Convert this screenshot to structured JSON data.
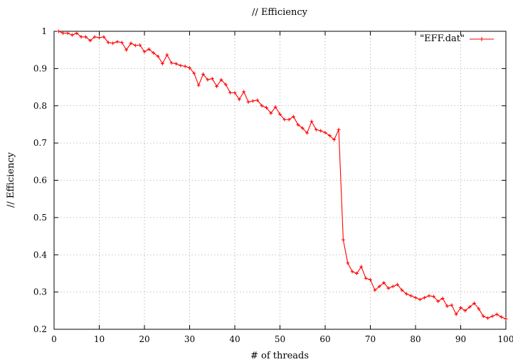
{
  "chart_data": {
    "type": "line",
    "title": "// Efficiency",
    "xlabel": "# of threads",
    "ylabel": "// Efficiency",
    "xlim": [
      0,
      100
    ],
    "ylim": [
      0.2,
      1
    ],
    "x_ticks": [
      0,
      10,
      20,
      30,
      40,
      50,
      60,
      70,
      80,
      90,
      100
    ],
    "y_ticks": [
      0.2,
      0.3,
      0.4,
      0.5,
      0.6,
      0.7,
      0.8,
      0.9,
      1
    ],
    "y_tick_labels": [
      "0.2",
      "0.3",
      "0.4",
      "0.5",
      "0.6",
      "0.7",
      "0.8",
      "0.9",
      "1"
    ],
    "grid": true,
    "legend_position": "top-right",
    "color": "#ff0000",
    "series": [
      {
        "name": "\"EFF.dat\"",
        "x": [
          1,
          2,
          3,
          4,
          5,
          6,
          7,
          8,
          9,
          10,
          11,
          12,
          13,
          14,
          15,
          16,
          17,
          18,
          19,
          20,
          21,
          22,
          23,
          24,
          25,
          26,
          27,
          28,
          29,
          30,
          31,
          32,
          33,
          34,
          35,
          36,
          37,
          38,
          39,
          40,
          41,
          42,
          43,
          44,
          45,
          46,
          47,
          48,
          49,
          50,
          51,
          52,
          53,
          54,
          55,
          56,
          57,
          58,
          59,
          60,
          61,
          62,
          63,
          64,
          65,
          66,
          67,
          68,
          69,
          70,
          71,
          72,
          73,
          74,
          75,
          76,
          77,
          78,
          79,
          80,
          81,
          82,
          83,
          84,
          85,
          86,
          87,
          88,
          89,
          90,
          91,
          92,
          93,
          94,
          95,
          96,
          97,
          98,
          99,
          100
        ],
        "values": [
          1.0,
          0.995,
          0.995,
          0.99,
          0.995,
          0.985,
          0.985,
          0.975,
          0.985,
          0.983,
          0.985,
          0.97,
          0.968,
          0.972,
          0.97,
          0.95,
          0.968,
          0.962,
          0.963,
          0.945,
          0.952,
          0.942,
          0.933,
          0.913,
          0.937,
          0.915,
          0.913,
          0.908,
          0.906,
          0.902,
          0.887,
          0.855,
          0.885,
          0.87,
          0.873,
          0.852,
          0.87,
          0.857,
          0.835,
          0.835,
          0.817,
          0.838,
          0.81,
          0.813,
          0.815,
          0.8,
          0.795,
          0.78,
          0.797,
          0.777,
          0.763,
          0.763,
          0.771,
          0.749,
          0.74,
          0.727,
          0.758,
          0.736,
          0.733,
          0.728,
          0.72,
          0.709,
          0.736,
          0.44,
          0.378,
          0.355,
          0.35,
          0.368,
          0.337,
          0.333,
          0.305,
          0.315,
          0.325,
          0.31,
          0.315,
          0.32,
          0.305,
          0.295,
          0.29,
          0.285,
          0.28,
          0.285,
          0.29,
          0.288,
          0.275,
          0.283,
          0.262,
          0.265,
          0.24,
          0.258,
          0.25,
          0.26,
          0.27,
          0.255,
          0.235,
          0.23,
          0.235,
          0.24,
          0.233,
          0.228
        ]
      }
    ]
  }
}
